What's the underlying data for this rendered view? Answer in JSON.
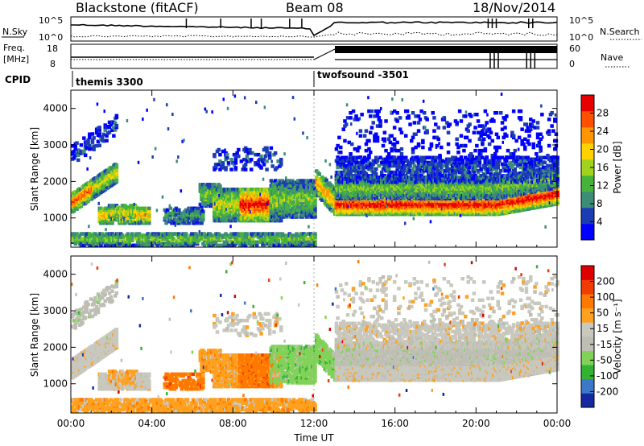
{
  "header": {
    "title": "Blackstone (fitACF)",
    "beam": "Beam 08",
    "date": "18/Nov/2014"
  },
  "noise_panel": {
    "left_label": "N.Sky",
    "right_label": "N.Search",
    "left_ticks": [
      "10^5",
      "10^0"
    ],
    "right_ticks": [
      "10^5",
      "10^0"
    ]
  },
  "freq_panel": {
    "left_label_line1": "Freq.",
    "left_label_line2": "[MHz]",
    "right_label": "Nave",
    "left_ticks": [
      "18",
      "8"
    ],
    "right_ticks": [
      "60",
      "0"
    ]
  },
  "cpid_panel": {
    "label": "CPID",
    "segments": [
      {
        "start_hour": 0,
        "text": "themis 3300"
      },
      {
        "start_hour": 12.05,
        "text": "twofsound -3501"
      }
    ]
  },
  "colors": {
    "power_scale": [
      "#0000ff",
      "#1c3cb4",
      "#3c8c78",
      "#46b43c",
      "#a0d21e",
      "#ffd200",
      "#ff9600",
      "#ff5000",
      "#e60000"
    ],
    "velocity_scale": [
      "#1428a0",
      "#3c78c8",
      "#32b432",
      "#82d25a",
      "#bebeb4",
      "#c8c8be",
      "#ffa01e",
      "#ff7800",
      "#f03c00",
      "#dc0000"
    ]
  },
  "chart_data": [
    {
      "type": "heatmap",
      "name": "power",
      "ylabel": "Slant Range [km]",
      "xlim": [
        0,
        24
      ],
      "ylim": [
        200,
        4500
      ],
      "yticks": [
        "1000",
        "2000",
        "3000",
        "4000"
      ],
      "xticks": [
        "00:00",
        "04:00",
        "08:00",
        "12:00",
        "16:00",
        "20:00",
        "00:00"
      ],
      "colorbar": {
        "label": "Power [dB]",
        "ticks": [
          "4",
          "8",
          "12",
          "16",
          "20",
          "24",
          "28"
        ],
        "range": [
          0,
          30
        ]
      }
    },
    {
      "type": "heatmap",
      "name": "velocity",
      "ylabel": "Slant Range [km]",
      "xlabel": "Time UT",
      "xlim": [
        0,
        24
      ],
      "ylim": [
        200,
        4500
      ],
      "yticks": [
        "1000",
        "2000",
        "3000",
        "4000"
      ],
      "xticks": [
        "00:00",
        "04:00",
        "08:00",
        "12:00",
        "16:00",
        "20:00",
        "00:00"
      ],
      "colorbar": {
        "label": "Velocity [m s⁻¹]",
        "ticks": [
          "200",
          "100",
          "50",
          "15",
          "-15",
          "-50",
          "-100",
          "-200"
        ]
      }
    }
  ]
}
